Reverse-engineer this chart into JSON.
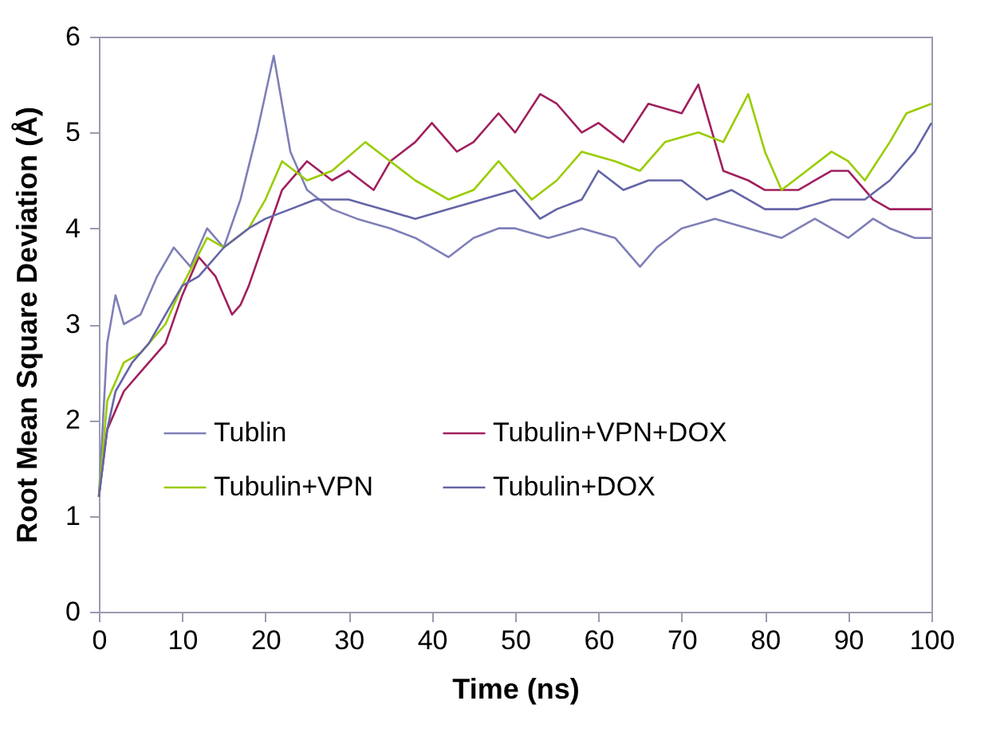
{
  "chart_data": {
    "type": "line",
    "xlabel": "Time (ns)",
    "ylabel": "Root Mean Square Deviation (Å)",
    "xlim": [
      0,
      100
    ],
    "xticks": [
      0,
      10,
      20,
      30,
      40,
      50,
      60,
      70,
      80,
      90,
      100
    ],
    "ylim": [
      0,
      6
    ],
    "yticks": [
      0,
      1,
      2,
      3,
      4,
      5,
      6
    ],
    "grid": false,
    "legend": "bottom",
    "series": [
      {
        "name": "Tublin",
        "color": "#7f7fb8",
        "x": [
          0,
          1,
          2,
          3,
          5,
          7,
          9,
          11,
          13,
          15,
          17,
          19,
          20,
          21,
          22,
          23,
          25,
          28,
          31,
          35,
          38,
          42,
          45,
          48,
          50,
          54,
          58,
          62,
          65,
          67,
          70,
          74,
          78,
          82,
          86,
          90,
          93,
          95,
          98,
          100
        ],
        "values": [
          1.2,
          2.8,
          3.3,
          3.0,
          3.1,
          3.5,
          3.8,
          3.6,
          4.0,
          3.8,
          4.3,
          5.0,
          5.4,
          5.8,
          5.3,
          4.8,
          4.4,
          4.2,
          4.1,
          4.0,
          3.9,
          3.7,
          3.9,
          4.0,
          4.0,
          3.9,
          4.0,
          3.9,
          3.6,
          3.8,
          4.0,
          4.1,
          4.0,
          3.9,
          4.1,
          3.9,
          4.1,
          4.0,
          3.9,
          3.9
        ]
      },
      {
        "name": "Tubulin+VPN+DOX",
        "color": "#a0205e",
        "x": [
          0,
          1,
          3,
          5,
          8,
          10,
          12,
          14,
          15,
          16,
          17,
          18,
          20,
          22,
          25,
          28,
          30,
          33,
          35,
          38,
          40,
          43,
          45,
          48,
          50,
          53,
          55,
          58,
          60,
          63,
          66,
          70,
          72,
          75,
          78,
          80,
          84,
          88,
          90,
          93,
          95,
          100
        ],
        "values": [
          1.2,
          1.9,
          2.3,
          2.5,
          2.8,
          3.3,
          3.7,
          3.5,
          3.3,
          3.1,
          3.2,
          3.4,
          3.9,
          4.4,
          4.7,
          4.5,
          4.6,
          4.4,
          4.7,
          4.9,
          5.1,
          4.8,
          4.9,
          5.2,
          5.0,
          5.4,
          5.3,
          5.0,
          5.1,
          4.9,
          5.3,
          5.2,
          5.5,
          4.6,
          4.5,
          4.4,
          4.4,
          4.6,
          4.6,
          4.3,
          4.2,
          4.2
        ]
      },
      {
        "name": "Tubulin+VPN",
        "color": "#99cc00",
        "x": [
          0,
          1,
          3,
          5,
          8,
          10,
          13,
          15,
          18,
          20,
          22,
          25,
          28,
          32,
          35,
          38,
          42,
          45,
          48,
          52,
          55,
          58,
          62,
          65,
          68,
          72,
          75,
          78,
          80,
          82,
          85,
          88,
          90,
          92,
          95,
          97,
          100
        ],
        "values": [
          1.2,
          2.2,
          2.6,
          2.7,
          3.0,
          3.4,
          3.9,
          3.8,
          4.0,
          4.3,
          4.7,
          4.5,
          4.6,
          4.9,
          4.7,
          4.5,
          4.3,
          4.4,
          4.7,
          4.3,
          4.5,
          4.8,
          4.7,
          4.6,
          4.9,
          5.0,
          4.9,
          5.4,
          4.8,
          4.4,
          4.6,
          4.8,
          4.7,
          4.5,
          4.9,
          5.2,
          5.3
        ]
      },
      {
        "name": "Tubulin+DOX",
        "color": "#6464a8",
        "x": [
          0,
          1,
          2,
          4,
          6,
          8,
          10,
          12,
          15,
          18,
          20,
          23,
          26,
          30,
          34,
          38,
          42,
          46,
          50,
          53,
          55,
          58,
          60,
          63,
          66,
          70,
          73,
          76,
          80,
          84,
          88,
          92,
          95,
          98,
          100
        ],
        "values": [
          1.2,
          1.9,
          2.3,
          2.6,
          2.8,
          3.1,
          3.4,
          3.5,
          3.8,
          4.0,
          4.1,
          4.2,
          4.3,
          4.3,
          4.2,
          4.1,
          4.2,
          4.3,
          4.4,
          4.1,
          4.2,
          4.3,
          4.6,
          4.4,
          4.5,
          4.5,
          4.3,
          4.4,
          4.2,
          4.2,
          4.3,
          4.3,
          4.5,
          4.8,
          5.1
        ]
      }
    ]
  }
}
